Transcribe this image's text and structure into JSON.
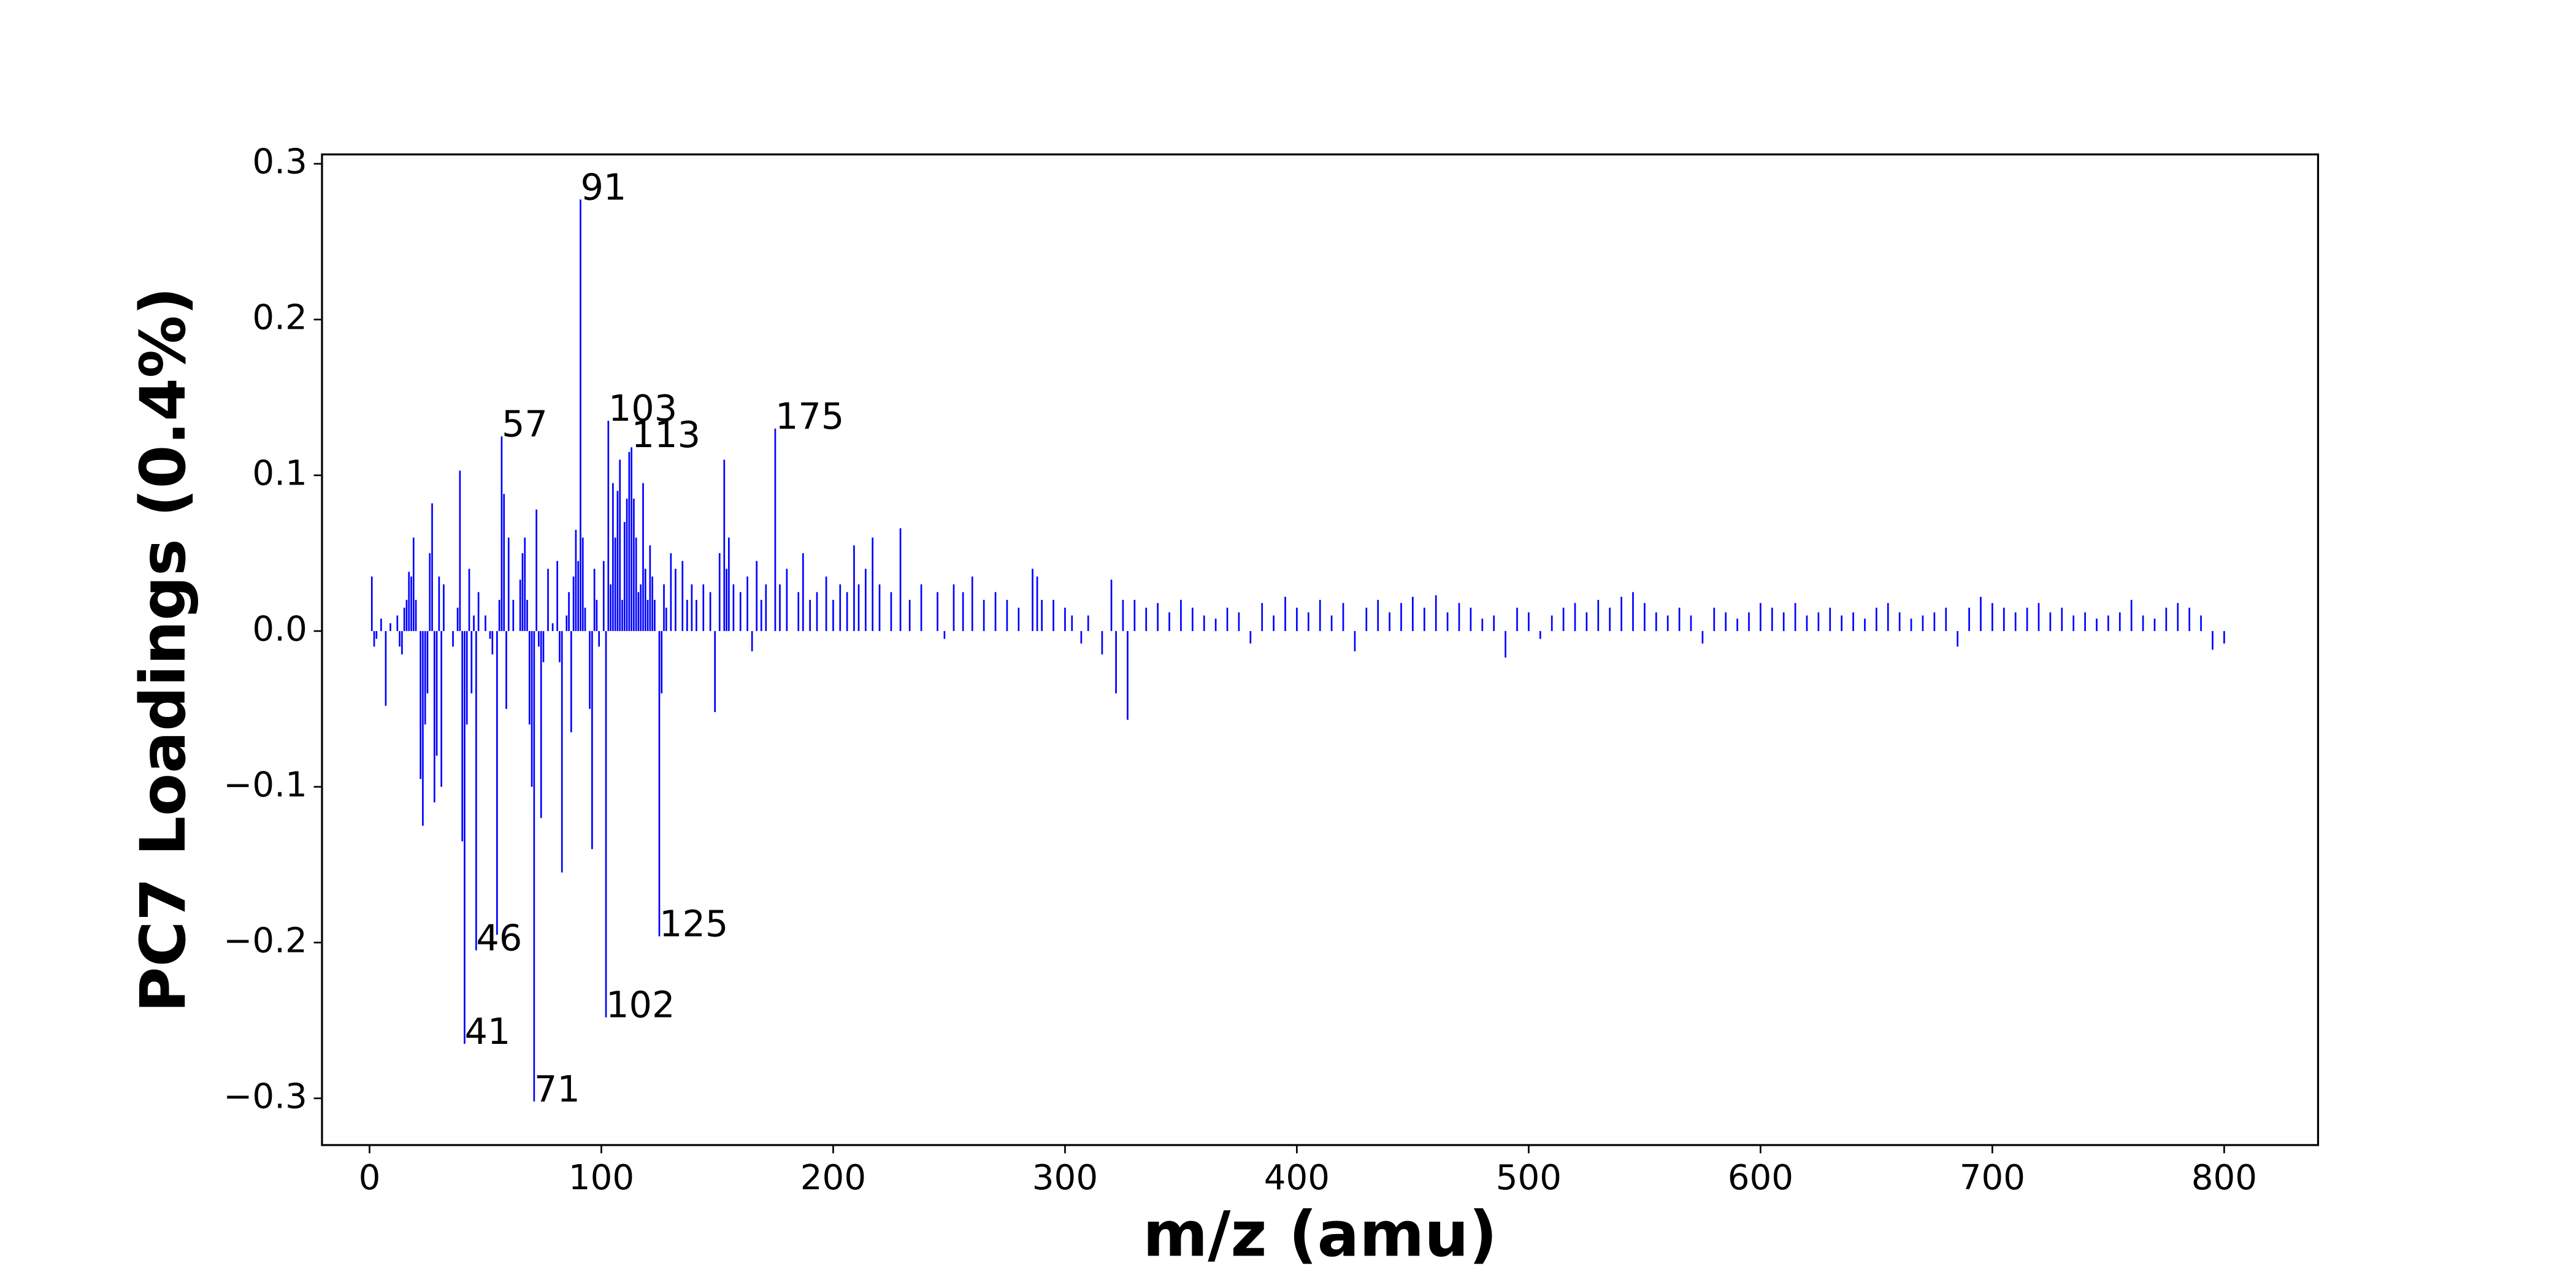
{
  "chart_data": {
    "type": "stem",
    "xlabel": "m/z (amu)",
    "ylabel": "PC7 Loadings (0.4%)",
    "color": "#0000ff",
    "xlim": [
      -20.5,
      840.5
    ],
    "ylim": [
      -0.33,
      0.306
    ],
    "xticks": [
      0,
      100,
      200,
      300,
      400,
      500,
      600,
      700,
      800
    ],
    "yticks": [
      {
        "value": -0.3,
        "label": "−0.3"
      },
      {
        "value": -0.2,
        "label": "−0.2"
      },
      {
        "value": -0.1,
        "label": "−0.1"
      },
      {
        "value": 0,
        "label": "0.0"
      },
      0.1,
      0.2,
      0.3
    ],
    "x": [
      1,
      2,
      3,
      5,
      7,
      9,
      12,
      13,
      14,
      15,
      16,
      17,
      18,
      19,
      20,
      22,
      23,
      24,
      25,
      26,
      27,
      28,
      29,
      30,
      31,
      32,
      36,
      38,
      39,
      40,
      41,
      42,
      43,
      44,
      45,
      46,
      47,
      50,
      52,
      53,
      55,
      56,
      57,
      58,
      59,
      60,
      62,
      65,
      66,
      67,
      68,
      69,
      70,
      71,
      72,
      73,
      74,
      75,
      77,
      79,
      81,
      82,
      83,
      85,
      86,
      87,
      88,
      89,
      90,
      91,
      92,
      93,
      95,
      96,
      97,
      98,
      99,
      101,
      102,
      103,
      104,
      105,
      106,
      107,
      108,
      109,
      110,
      111,
      112,
      113,
      114,
      115,
      116,
      117,
      118,
      119,
      120,
      121,
      122,
      123,
      125,
      126,
      127,
      128,
      130,
      132,
      135,
      137,
      139,
      141,
      144,
      147,
      149,
      151,
      153,
      154,
      155,
      157,
      160,
      163,
      165,
      167,
      169,
      171,
      175,
      177,
      180,
      185,
      187,
      190,
      193,
      197,
      200,
      203,
      206,
      209,
      211,
      214,
      217,
      220,
      225,
      229,
      233,
      238,
      245,
      248,
      252,
      256,
      260,
      265,
      270,
      275,
      280,
      286,
      288,
      290,
      295,
      300,
      303,
      307,
      310,
      316,
      320,
      322,
      325,
      327,
      330,
      335,
      340,
      345,
      350,
      355,
      360,
      365,
      370,
      375,
      380,
      385,
      390,
      395,
      400,
      405,
      410,
      415,
      420,
      425,
      430,
      435,
      440,
      445,
      450,
      455,
      460,
      465,
      470,
      475,
      480,
      485,
      490,
      495,
      500,
      505,
      510,
      515,
      520,
      525,
      530,
      535,
      540,
      545,
      550,
      555,
      560,
      565,
      570,
      575,
      580,
      585,
      590,
      595,
      600,
      605,
      610,
      615,
      620,
      625,
      630,
      635,
      640,
      645,
      650,
      655,
      660,
      665,
      670,
      675,
      680,
      685,
      690,
      695,
      700,
      705,
      710,
      715,
      720,
      725,
      730,
      735,
      740,
      745,
      750,
      755,
      760,
      765,
      770,
      775,
      780,
      785,
      790,
      795,
      800
    ],
    "values": [
      0.035,
      -0.01,
      -0.005,
      0.008,
      -0.048,
      0.005,
      0.01,
      -0.01,
      -0.015,
      0.015,
      0.02,
      0.038,
      0.035,
      0.06,
      0.02,
      -0.095,
      -0.125,
      -0.06,
      -0.04,
      0.05,
      0.082,
      -0.11,
      -0.08,
      0.035,
      -0.1,
      0.03,
      -0.01,
      0.015,
      0.103,
      -0.135,
      -0.265,
      -0.06,
      0.04,
      -0.04,
      0.01,
      -0.205,
      0.025,
      0.01,
      -0.005,
      -0.015,
      -0.195,
      0.02,
      0.125,
      0.088,
      -0.05,
      0.06,
      0.02,
      0.033,
      0.05,
      0.06,
      0.02,
      -0.06,
      -0.1,
      -0.302,
      0.078,
      -0.01,
      -0.12,
      -0.02,
      0.04,
      0.005,
      0.045,
      -0.02,
      -0.155,
      0.01,
      0.025,
      -0.065,
      0.035,
      0.065,
      0.045,
      0.277,
      0.06,
      0.015,
      -0.05,
      -0.14,
      0.04,
      0.02,
      -0.01,
      0.045,
      -0.248,
      0.135,
      0.03,
      0.095,
      0.06,
      0.09,
      0.11,
      0.02,
      0.07,
      0.085,
      0.115,
      0.118,
      0.085,
      0.06,
      0.025,
      0.03,
      0.095,
      0.04,
      0.02,
      0.055,
      0.035,
      0.02,
      -0.196,
      -0.04,
      0.03,
      0.015,
      0.05,
      0.04,
      0.045,
      0.02,
      0.03,
      0.02,
      0.03,
      0.025,
      -0.052,
      0.05,
      0.11,
      0.04,
      0.06,
      0.03,
      0.025,
      0.035,
      -0.013,
      0.045,
      0.02,
      0.03,
      0.13,
      0.03,
      0.04,
      0.025,
      0.05,
      0.02,
      0.025,
      0.035,
      0.02,
      0.03,
      0.025,
      0.055,
      0.03,
      0.04,
      0.06,
      0.03,
      0.025,
      0.066,
      0.02,
      0.03,
      0.025,
      -0.005,
      0.03,
      0.025,
      0.035,
      0.02,
      0.025,
      0.02,
      0.015,
      0.04,
      0.035,
      0.02,
      0.02,
      0.015,
      0.01,
      -0.008,
      0.01,
      -0.015,
      0.033,
      -0.04,
      0.02,
      -0.057,
      0.02,
      0.015,
      0.018,
      0.012,
      0.02,
      0.015,
      0.01,
      0.008,
      0.015,
      0.012,
      -0.008,
      0.018,
      0.01,
      0.022,
      0.015,
      0.012,
      0.02,
      0.01,
      0.018,
      -0.013,
      0.015,
      0.02,
      0.012,
      0.018,
      0.022,
      0.015,
      0.023,
      0.012,
      0.018,
      0.015,
      0.008,
      0.01,
      -0.017,
      0.015,
      0.012,
      -0.005,
      0.01,
      0.015,
      0.018,
      0.012,
      0.02,
      0.015,
      0.022,
      0.025,
      0.018,
      0.012,
      0.01,
      0.015,
      0.01,
      -0.008,
      0.015,
      0.012,
      0.008,
      0.012,
      0.018,
      0.015,
      0.012,
      0.018,
      0.01,
      0.012,
      0.015,
      0.01,
      0.012,
      0.008,
      0.015,
      0.018,
      0.012,
      0.008,
      0.01,
      0.012,
      0.015,
      -0.01,
      0.015,
      0.022,
      0.018,
      0.015,
      0.012,
      0.015,
      0.018,
      0.012,
      0.015,
      0.01,
      0.012,
      0.008,
      0.01,
      0.012,
      0.02,
      0.01,
      0.008,
      0.015,
      0.018,
      0.015,
      0.01,
      -0.012,
      -0.008
    ],
    "annotations": [
      {
        "text": "91",
        "x": 91,
        "y": 0.277
      },
      {
        "text": "57",
        "x": 57,
        "y": 0.125
      },
      {
        "text": "103",
        "x": 103,
        "y": 0.135
      },
      {
        "text": "113",
        "x": 113,
        "y": 0.118
      },
      {
        "text": "175",
        "x": 175,
        "y": 0.13
      },
      {
        "text": "46",
        "x": 46,
        "y": -0.205
      },
      {
        "text": "41",
        "x": 41,
        "y": -0.265
      },
      {
        "text": "71",
        "x": 71,
        "y": -0.302
      },
      {
        "text": "102",
        "x": 102,
        "y": -0.248
      },
      {
        "text": "125",
        "x": 125,
        "y": -0.196
      }
    ]
  }
}
